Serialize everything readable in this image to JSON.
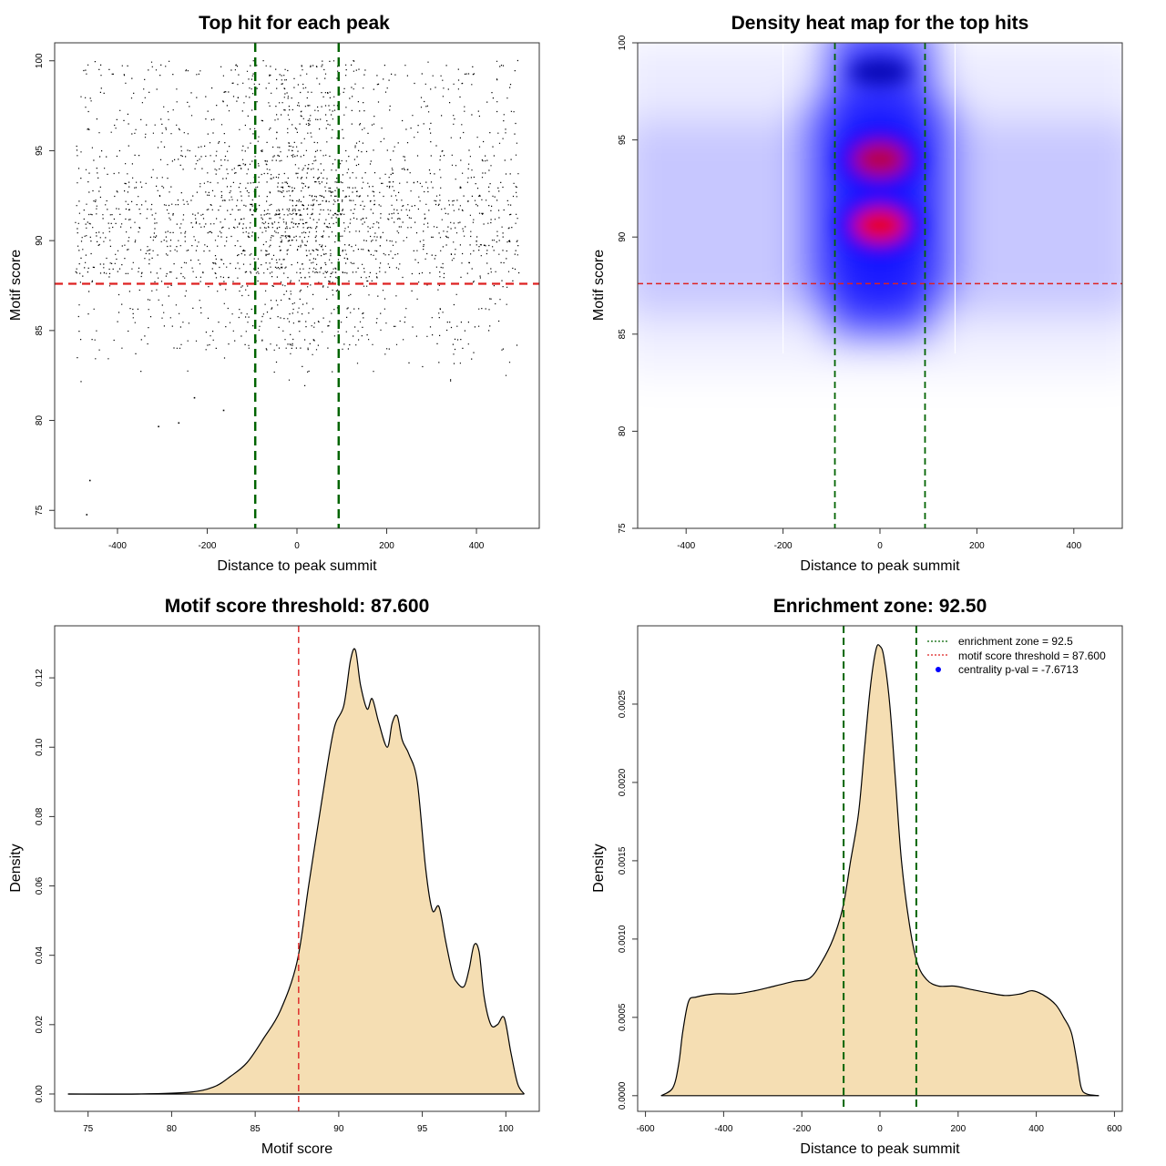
{
  "colors": {
    "threshold_red": "#dd2222",
    "zone_green": "#006400",
    "density_fill": "#f5deb3",
    "heat_blue": "#0000ff",
    "heat_red": "#ff0000",
    "legend_point_blue": "#0000ff"
  },
  "chart_data": [
    {
      "type": "scatter",
      "title": "Top hit for each peak",
      "xlabel": "Distance to peak summit",
      "ylabel": "Motif score",
      "xlim": [
        -540,
        540
      ],
      "ylim": [
        74,
        101
      ],
      "x_ticks": [
        -400,
        -200,
        0,
        200,
        400
      ],
      "y_ticks": [
        75,
        80,
        85,
        90,
        95,
        100
      ],
      "hline": 87.6,
      "vlines": [
        -93,
        93
      ],
      "points_description_note_for_generator": "dense points x in [-500,500], y mostly 84-100, concentrated around x=0 and y 88-95",
      "n_points": 9000,
      "outliers": [
        [
          -470,
          74.8
        ],
        [
          -463,
          76.7
        ],
        [
          -310,
          79.7
        ],
        [
          -265,
          79.9
        ],
        [
          -230,
          81.3
        ],
        [
          -165,
          80.6
        ]
      ]
    },
    {
      "type": "heatmap",
      "title": "Density heat map for the top hits",
      "xlabel": "Distance to peak summit",
      "ylabel": "Motif score",
      "xlim": [
        -500,
        500
      ],
      "ylim": [
        75,
        100
      ],
      "x_ticks": [
        -400,
        -200,
        0,
        200,
        400
      ],
      "y_ticks": [
        75,
        80,
        85,
        90,
        95,
        100
      ],
      "hline": 87.6,
      "vlines": [
        -93,
        93
      ],
      "white_lines": [
        -200,
        155
      ],
      "hotspots": [
        {
          "x": 0,
          "y": 90.6,
          "intensity": 1.0
        },
        {
          "x": 0,
          "y": 94.0,
          "intensity": 0.8
        },
        {
          "x": 0,
          "y": 98.5,
          "intensity": 0.45
        }
      ]
    },
    {
      "type": "area",
      "title": "Motif score threshold: 87.600",
      "xlabel": "Motif score",
      "ylabel": "Density",
      "xlim": [
        73,
        102
      ],
      "ylim": [
        -0.005,
        0.135
      ],
      "x_ticks": [
        75,
        80,
        85,
        90,
        95,
        100
      ],
      "y_ticks": [
        0.0,
        0.02,
        0.04,
        0.06,
        0.08,
        0.1,
        0.12
      ],
      "y_tick_labels": [
        "0.00",
        "0.02",
        "0.04",
        "0.06",
        "0.08",
        "0.10",
        "0.12"
      ],
      "vline": 87.6,
      "x": [
        73.8,
        78,
        81,
        82.5,
        83.5,
        84.5,
        85.5,
        86.5,
        87.5,
        88.2,
        89,
        89.7,
        90.3,
        90.7,
        91,
        91.3,
        91.7,
        92,
        92.4,
        92.9,
        93.2,
        93.5,
        93.8,
        94.2,
        94.7,
        95.2,
        95.6,
        96,
        96.4,
        96.8,
        97.1,
        97.5,
        97.8,
        98.1,
        98.4,
        98.7,
        99.1,
        99.5,
        99.9,
        100.3,
        100.7,
        101.1
      ],
      "y": [
        0,
        0,
        0.0005,
        0.002,
        0.005,
        0.009,
        0.016,
        0.024,
        0.038,
        0.06,
        0.085,
        0.105,
        0.112,
        0.125,
        0.128,
        0.118,
        0.111,
        0.114,
        0.107,
        0.1,
        0.107,
        0.109,
        0.102,
        0.098,
        0.09,
        0.065,
        0.053,
        0.054,
        0.044,
        0.035,
        0.032,
        0.031,
        0.036,
        0.043,
        0.041,
        0.028,
        0.02,
        0.02,
        0.022,
        0.012,
        0.003,
        0
      ]
    },
    {
      "type": "area",
      "title": "Enrichment zone: 92.50",
      "xlabel": "Distance to peak summit",
      "ylabel": "Density",
      "xlim": [
        -620,
        620
      ],
      "ylim": [
        -0.0001,
        0.003
      ],
      "x_ticks": [
        -600,
        -400,
        -200,
        0,
        200,
        400,
        600
      ],
      "y_ticks": [
        0.0,
        0.0005,
        0.001,
        0.0015,
        0.002,
        0.0025
      ],
      "y_tick_labels": [
        "0.0000",
        "0.0005",
        "0.0010",
        "0.0015",
        "0.0020",
        "0.0025"
      ],
      "vlines": [
        -93,
        93
      ],
      "x": [
        -560,
        -530,
        -515,
        -505,
        -490,
        -470,
        -420,
        -370,
        -320,
        -270,
        -220,
        -180,
        -150,
        -120,
        -95,
        -75,
        -55,
        -40,
        -25,
        -10,
        0,
        10,
        25,
        40,
        55,
        75,
        95,
        120,
        150,
        190,
        230,
        270,
        320,
        360,
        390,
        420,
        450,
        470,
        490,
        505,
        515,
        530,
        560
      ],
      "y": [
        0,
        5e-05,
        0.0002,
        0.0004,
        0.0006,
        0.00063,
        0.00065,
        0.00065,
        0.00067,
        0.0007,
        0.00073,
        0.00075,
        0.00085,
        0.001,
        0.0012,
        0.0015,
        0.0018,
        0.0022,
        0.0026,
        0.00285,
        0.00287,
        0.0028,
        0.0025,
        0.002,
        0.0015,
        0.0011,
        0.00085,
        0.00074,
        0.0007,
        0.0007,
        0.00068,
        0.00066,
        0.00064,
        0.00065,
        0.00067,
        0.00064,
        0.00058,
        0.0005,
        0.0004,
        0.0002,
        5e-05,
        1e-05,
        0
      ],
      "legend": [
        {
          "label": "enrichment zone = 92.5",
          "style": "dotted-green"
        },
        {
          "label": "motif score threshold = 87.600",
          "style": "dotted-red"
        },
        {
          "label": "centrality p-val = -7.6713",
          "style": "point-blue"
        }
      ]
    }
  ]
}
